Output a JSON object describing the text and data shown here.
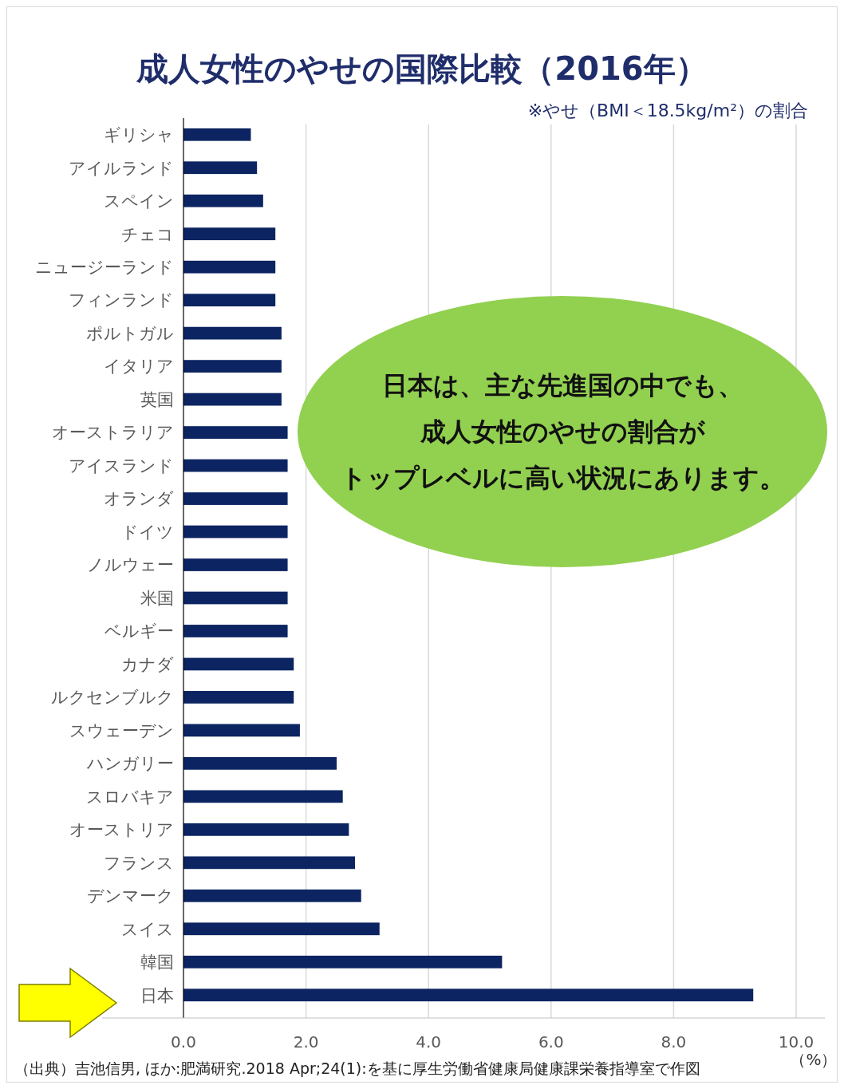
{
  "chart_data": {
    "type": "bar",
    "orientation": "horizontal",
    "title": "成人女性のやせの国際比較（2016年）",
    "subtitle": "※やせ（BMI＜18.5kg/m²）の割合",
    "xlabel": "（%）",
    "categories": [
      "ギリシャ",
      "アイルランド",
      "スペイン",
      "チェコ",
      "ニュージーランド",
      "フィンランド",
      "ポルトガル",
      "イタリア",
      "英国",
      "オーストラリア",
      "アイスランド",
      "オランダ",
      "ドイツ",
      "ノルウェー",
      "米国",
      "ベルギー",
      "カナダ",
      "ルクセンブルク",
      "スウェーデン",
      "ハンガリー",
      "スロバキア",
      "オーストリア",
      "フランス",
      "デンマーク",
      "スイス",
      "韓国",
      "日本"
    ],
    "values": [
      1.1,
      1.2,
      1.3,
      1.5,
      1.5,
      1.5,
      1.6,
      1.6,
      1.6,
      1.7,
      1.7,
      1.7,
      1.7,
      1.7,
      1.7,
      1.7,
      1.8,
      1.8,
      1.9,
      2.5,
      2.6,
      2.7,
      2.8,
      2.9,
      3.2,
      5.2,
      9.3
    ],
    "color": "#0c2461",
    "xlim": [
      0,
      10
    ],
    "xticks": [
      {
        "value": 0,
        "label": "0.0"
      },
      {
        "value": 2,
        "label": "2.0"
      },
      {
        "value": 4,
        "label": "4.0"
      },
      {
        "value": 6,
        "label": "6.0"
      },
      {
        "value": 8,
        "label": "8.0"
      },
      {
        "value": 10,
        "label": "10.0"
      }
    ],
    "grid": "x",
    "annotations": [
      "日本は、主な先進国の中でも、",
      "成人女性のやせの割合が",
      "トップレベルに高い状況にあります。",
      "（出典）吉池信男, ほか:肥満研究.2018  Apr;24(1):を基に厚生労働省健康局健康課栄養指導室で作図"
    ]
  }
}
